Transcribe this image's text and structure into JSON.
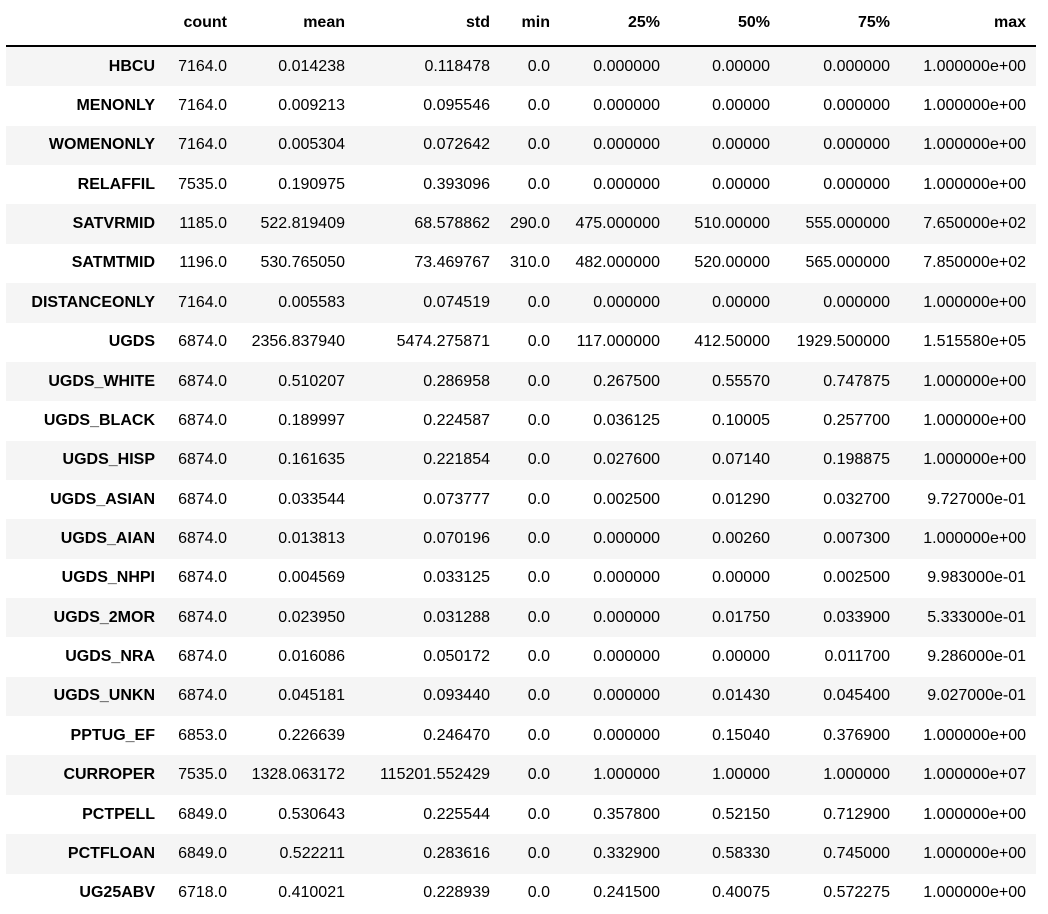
{
  "title": "DataFrame describe statistics table",
  "colors": {
    "stripe": "#f5f5f5",
    "row_alt": "#ffffff",
    "header_border": "#000000",
    "text": "#000000"
  },
  "chart_data": {
    "type": "table",
    "corner_label": "",
    "columns": [
      "count",
      "mean",
      "std",
      "min",
      "25%",
      "50%",
      "75%",
      "max"
    ],
    "rows": [
      {
        "label": "HBCU",
        "values": [
          "7164.0",
          "0.014238",
          "0.118478",
          "0.0",
          "0.000000",
          "0.00000",
          "0.000000",
          "1.000000e+00"
        ]
      },
      {
        "label": "MENONLY",
        "values": [
          "7164.0",
          "0.009213",
          "0.095546",
          "0.0",
          "0.000000",
          "0.00000",
          "0.000000",
          "1.000000e+00"
        ]
      },
      {
        "label": "WOMENONLY",
        "values": [
          "7164.0",
          "0.005304",
          "0.072642",
          "0.0",
          "0.000000",
          "0.00000",
          "0.000000",
          "1.000000e+00"
        ]
      },
      {
        "label": "RELAFFIL",
        "values": [
          "7535.0",
          "0.190975",
          "0.393096",
          "0.0",
          "0.000000",
          "0.00000",
          "0.000000",
          "1.000000e+00"
        ]
      },
      {
        "label": "SATVRMID",
        "values": [
          "1185.0",
          "522.819409",
          "68.578862",
          "290.0",
          "475.000000",
          "510.00000",
          "555.000000",
          "7.650000e+02"
        ]
      },
      {
        "label": "SATMTMID",
        "values": [
          "1196.0",
          "530.765050",
          "73.469767",
          "310.0",
          "482.000000",
          "520.00000",
          "565.000000",
          "7.850000e+02"
        ]
      },
      {
        "label": "DISTANCEONLY",
        "values": [
          "7164.0",
          "0.005583",
          "0.074519",
          "0.0",
          "0.000000",
          "0.00000",
          "0.000000",
          "1.000000e+00"
        ]
      },
      {
        "label": "UGDS",
        "values": [
          "6874.0",
          "2356.837940",
          "5474.275871",
          "0.0",
          "117.000000",
          "412.50000",
          "1929.500000",
          "1.515580e+05"
        ]
      },
      {
        "label": "UGDS_WHITE",
        "values": [
          "6874.0",
          "0.510207",
          "0.286958",
          "0.0",
          "0.267500",
          "0.55570",
          "0.747875",
          "1.000000e+00"
        ]
      },
      {
        "label": "UGDS_BLACK",
        "values": [
          "6874.0",
          "0.189997",
          "0.224587",
          "0.0",
          "0.036125",
          "0.10005",
          "0.257700",
          "1.000000e+00"
        ]
      },
      {
        "label": "UGDS_HISP",
        "values": [
          "6874.0",
          "0.161635",
          "0.221854",
          "0.0",
          "0.027600",
          "0.07140",
          "0.198875",
          "1.000000e+00"
        ]
      },
      {
        "label": "UGDS_ASIAN",
        "values": [
          "6874.0",
          "0.033544",
          "0.073777",
          "0.0",
          "0.002500",
          "0.01290",
          "0.032700",
          "9.727000e-01"
        ]
      },
      {
        "label": "UGDS_AIAN",
        "values": [
          "6874.0",
          "0.013813",
          "0.070196",
          "0.0",
          "0.000000",
          "0.00260",
          "0.007300",
          "1.000000e+00"
        ]
      },
      {
        "label": "UGDS_NHPI",
        "values": [
          "6874.0",
          "0.004569",
          "0.033125",
          "0.0",
          "0.000000",
          "0.00000",
          "0.002500",
          "9.983000e-01"
        ]
      },
      {
        "label": "UGDS_2MOR",
        "values": [
          "6874.0",
          "0.023950",
          "0.031288",
          "0.0",
          "0.000000",
          "0.01750",
          "0.033900",
          "5.333000e-01"
        ]
      },
      {
        "label": "UGDS_NRA",
        "values": [
          "6874.0",
          "0.016086",
          "0.050172",
          "0.0",
          "0.000000",
          "0.00000",
          "0.011700",
          "9.286000e-01"
        ]
      },
      {
        "label": "UGDS_UNKN",
        "values": [
          "6874.0",
          "0.045181",
          "0.093440",
          "0.0",
          "0.000000",
          "0.01430",
          "0.045400",
          "9.027000e-01"
        ]
      },
      {
        "label": "PPTUG_EF",
        "values": [
          "6853.0",
          "0.226639",
          "0.246470",
          "0.0",
          "0.000000",
          "0.15040",
          "0.376900",
          "1.000000e+00"
        ]
      },
      {
        "label": "CURROPER",
        "values": [
          "7535.0",
          "1328.063172",
          "115201.552429",
          "0.0",
          "1.000000",
          "1.00000",
          "1.000000",
          "1.000000e+07"
        ]
      },
      {
        "label": "PCTPELL",
        "values": [
          "6849.0",
          "0.530643",
          "0.225544",
          "0.0",
          "0.357800",
          "0.52150",
          "0.712900",
          "1.000000e+00"
        ]
      },
      {
        "label": "PCTFLOAN",
        "values": [
          "6849.0",
          "0.522211",
          "0.283616",
          "0.0",
          "0.332900",
          "0.58330",
          "0.745000",
          "1.000000e+00"
        ]
      },
      {
        "label": "UG25ABV",
        "values": [
          "6718.0",
          "0.410021",
          "0.228939",
          "0.0",
          "0.241500",
          "0.40075",
          "0.572275",
          "1.000000e+00"
        ]
      }
    ],
    "layout": {
      "striped": true,
      "index_bold": true,
      "alignment": "right"
    }
  }
}
